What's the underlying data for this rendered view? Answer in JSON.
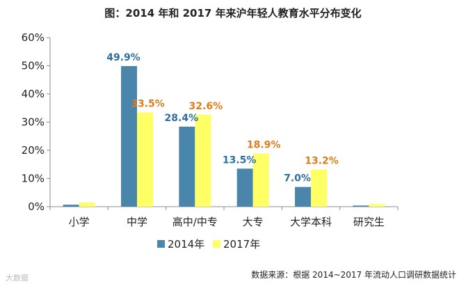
{
  "chart_data": {
    "type": "bar",
    "title": "图：2014 年和 2017 年来沪年轻人教育水平分布变化",
    "categories": [
      "小学",
      "中学",
      "高中/中专",
      "大专",
      "大学本科",
      "研究生"
    ],
    "series": [
      {
        "name": "2014年",
        "color": "#4A86AC",
        "label_color": "#2E6E9E",
        "values": [
          0.7,
          49.9,
          28.4,
          13.5,
          7.0,
          0.4
        ],
        "labels": [
          "",
          "49.9%",
          "28.4%",
          "13.5%",
          "7.0%",
          ""
        ]
      },
      {
        "name": "2017年",
        "color": "#FFFF66",
        "label_color": "#E07B1A",
        "values": [
          1.5,
          33.5,
          32.6,
          18.9,
          13.2,
          0.9
        ],
        "labels": [
          "",
          "33.5%",
          "32.6%",
          "18.9%",
          "13.2%",
          ""
        ]
      }
    ],
    "ylim": [
      0,
      60
    ],
    "yticks": [
      0,
      10,
      20,
      30,
      40,
      50,
      60
    ],
    "ytick_labels": [
      "0%",
      "10%",
      "20%",
      "30%",
      "40%",
      "50%",
      "60%"
    ],
    "xlabel": "",
    "ylabel": "",
    "legend": "bottom-center",
    "grid": false
  },
  "footer": {
    "source": "数据来源：根据 2014~2017 年流动人口调研数据统计",
    "watermark": "大数据"
  }
}
